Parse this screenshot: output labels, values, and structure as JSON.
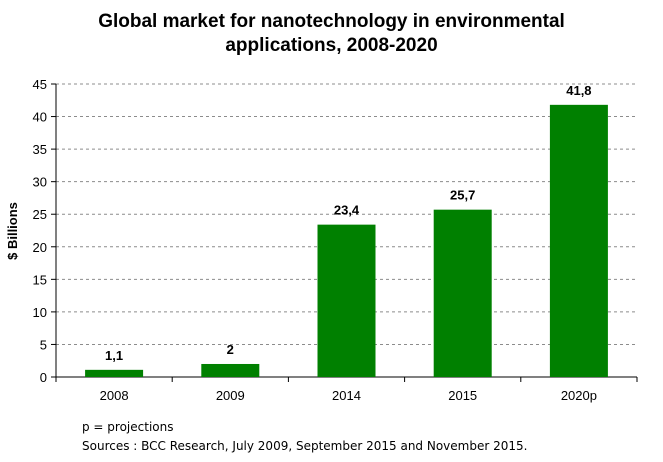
{
  "chart_data": {
    "type": "bar",
    "title_lines": [
      "Global market for nanotechnology in environmental",
      "applications, 2008-2020"
    ],
    "xlabel": "",
    "ylabel": "$ Billions",
    "categories": [
      "2008",
      "2009",
      "2014",
      "2015",
      "2020p"
    ],
    "values": [
      1.1,
      2,
      23.4,
      25.7,
      41.8
    ],
    "value_labels": [
      "1,1",
      "2",
      "23,4",
      "25,7",
      "41,8"
    ],
    "ylim": [
      0,
      45
    ],
    "yticks": [
      0,
      5,
      10,
      15,
      20,
      25,
      30,
      35,
      40,
      45
    ],
    "grid": true,
    "bar_color": "#008000",
    "legend": "none"
  },
  "notes": {
    "projections": "p = projections",
    "sources": "Sources : BCC Research, July 2009, September 2015 and November 2015."
  }
}
